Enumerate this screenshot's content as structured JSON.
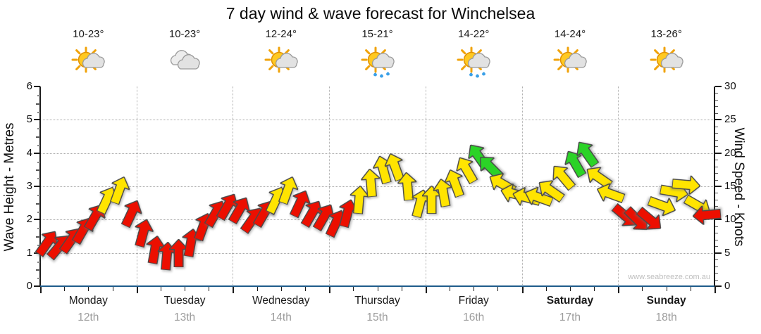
{
  "title": "7 day wind & wave forecast for Winchelsea",
  "watermark": "www.seabreeze.com.au",
  "colors": {
    "red": "#ec0f00",
    "yellow": "#ffe400",
    "green": "#2bd327",
    "outline": "#4a4a4a",
    "axis_bottom": "#1f5c8b",
    "grid": "#a8a8a8",
    "sun": "#ffc922",
    "cloud": "#e2e2e2",
    "rain": "#3aa0e8"
  },
  "days": [
    {
      "name": "Monday",
      "date": "12th",
      "temp": "10-23°",
      "icon": "sun-cloud",
      "bold": false
    },
    {
      "name": "Tuesday",
      "date": "13th",
      "temp": "10-23°",
      "icon": "clouds",
      "bold": false
    },
    {
      "name": "Wednesday",
      "date": "14th",
      "temp": "12-24°",
      "icon": "sun-cloud",
      "bold": false
    },
    {
      "name": "Thursday",
      "date": "15th",
      "temp": "15-21°",
      "icon": "sun-cloud-rain",
      "bold": false
    },
    {
      "name": "Friday",
      "date": "16th",
      "temp": "14-22°",
      "icon": "sun-cloud-rain",
      "bold": false
    },
    {
      "name": "Saturday",
      "date": "17th",
      "temp": "14-24°",
      "icon": "sun-cloud",
      "bold": true
    },
    {
      "name": "Sunday",
      "date": "18th",
      "temp": "13-26°",
      "icon": "sun-cloud",
      "bold": true
    }
  ],
  "left_axis": {
    "label": "Wave Height - Metres",
    "ticks": [
      0,
      1,
      2,
      3,
      4,
      5,
      6
    ],
    "lim": [
      0,
      6
    ]
  },
  "right_axis": {
    "label": "Wind Speed - Knots",
    "ticks": [
      0,
      5,
      10,
      15,
      20,
      25,
      30
    ],
    "lim": [
      0,
      30
    ]
  },
  "chart_data": {
    "type": "wind-arrows",
    "title": "7 day wind & wave forecast for Winchelsea",
    "x": "8 three-hourly points per day, 7 days",
    "left_ylim": [
      0,
      6
    ],
    "right_ylim": [
      0,
      30
    ],
    "grid": "dotted horizontal every 5 knots, dotted vertical at day boundaries",
    "legend": "arrow colour = wind strength (red light, yellow moderate, green fresh); arrow angle = wind direction; height on right axis = wind speed in knots",
    "series": [
      {
        "day": "Monday",
        "points": [
          {
            "s": 6.5,
            "dir": 35,
            "c": "red"
          },
          {
            "s": 6,
            "dir": 40,
            "c": "red"
          },
          {
            "s": 7,
            "dir": 35,
            "c": "red"
          },
          {
            "s": 8.5,
            "dir": 30,
            "c": "red"
          },
          {
            "s": 10.5,
            "dir": 30,
            "c": "red"
          },
          {
            "s": 13,
            "dir": 25,
            "c": "yellow"
          },
          {
            "s": 14.5,
            "dir": 20,
            "c": "yellow"
          },
          {
            "s": 11,
            "dir": 25,
            "c": "red"
          }
        ]
      },
      {
        "day": "Tuesday",
        "points": [
          {
            "s": 8,
            "dir": 15,
            "c": "red"
          },
          {
            "s": 5.5,
            "dir": 10,
            "c": "red"
          },
          {
            "s": 4.5,
            "dir": 5,
            "c": "red"
          },
          {
            "s": 5,
            "dir": 0,
            "c": "red"
          },
          {
            "s": 6.5,
            "dir": 10,
            "c": "red"
          },
          {
            "s": 9,
            "dir": 20,
            "c": "red"
          },
          {
            "s": 11,
            "dir": 30,
            "c": "red"
          },
          {
            "s": 12,
            "dir": 30,
            "c": "red"
          }
        ]
      },
      {
        "day": "Wednesday",
        "points": [
          {
            "s": 11.5,
            "dir": 30,
            "c": "red"
          },
          {
            "s": 10,
            "dir": 35,
            "c": "red"
          },
          {
            "s": 11,
            "dir": 30,
            "c": "red"
          },
          {
            "s": 13,
            "dir": 25,
            "c": "yellow"
          },
          {
            "s": 14.5,
            "dir": 20,
            "c": "yellow"
          },
          {
            "s": 12.5,
            "dir": 25,
            "c": "red"
          },
          {
            "s": 11,
            "dir": 30,
            "c": "red"
          },
          {
            "s": 10.5,
            "dir": 30,
            "c": "red"
          }
        ]
      },
      {
        "day": "Thursday",
        "points": [
          {
            "s": 9.5,
            "dir": 25,
            "c": "red"
          },
          {
            "s": 11,
            "dir": 15,
            "c": "red"
          },
          {
            "s": 13,
            "dir": 5,
            "c": "yellow"
          },
          {
            "s": 15.5,
            "dir": -5,
            "c": "yellow"
          },
          {
            "s": 17.5,
            "dir": -15,
            "c": "yellow"
          },
          {
            "s": 18,
            "dir": -20,
            "c": "yellow"
          },
          {
            "s": 15,
            "dir": -5,
            "c": "yellow"
          },
          {
            "s": 12.5,
            "dir": 15,
            "c": "yellow"
          }
        ]
      },
      {
        "day": "Friday",
        "points": [
          {
            "s": 13,
            "dir": 0,
            "c": "yellow"
          },
          {
            "s": 14,
            "dir": -10,
            "c": "yellow"
          },
          {
            "s": 15.5,
            "dir": -20,
            "c": "yellow"
          },
          {
            "s": 17.5,
            "dir": -30,
            "c": "yellow"
          },
          {
            "s": 19.5,
            "dir": -35,
            "c": "green"
          },
          {
            "s": 18,
            "dir": -45,
            "c": "green"
          },
          {
            "s": 15.5,
            "dir": -60,
            "c": "yellow"
          },
          {
            "s": 14,
            "dir": -75,
            "c": "yellow"
          }
        ]
      },
      {
        "day": "Saturday",
        "points": [
          {
            "s": 13.5,
            "dir": -75,
            "c": "yellow"
          },
          {
            "s": 13.5,
            "dir": -70,
            "c": "yellow"
          },
          {
            "s": 14.5,
            "dir": -55,
            "c": "yellow"
          },
          {
            "s": 16.5,
            "dir": -40,
            "c": "yellow"
          },
          {
            "s": 18.5,
            "dir": -30,
            "c": "green"
          },
          {
            "s": 20,
            "dir": -35,
            "c": "green"
          },
          {
            "s": 16.5,
            "dir": -55,
            "c": "yellow"
          },
          {
            "s": 14,
            "dir": -70,
            "c": "yellow"
          }
        ]
      },
      {
        "day": "Sunday",
        "points": [
          {
            "s": 11,
            "dir": 130,
            "c": "red"
          },
          {
            "s": 10.5,
            "dir": 135,
            "c": "red"
          },
          {
            "s": 10.5,
            "dir": 130,
            "c": "red"
          },
          {
            "s": 12.5,
            "dir": 110,
            "c": "yellow"
          },
          {
            "s": 14.5,
            "dir": 100,
            "c": "yellow"
          },
          {
            "s": 15.5,
            "dir": 95,
            "c": "yellow"
          },
          {
            "s": 12.5,
            "dir": 120,
            "c": "yellow"
          },
          {
            "s": 11,
            "dir": 265,
            "c": "red"
          }
        ]
      }
    ]
  }
}
